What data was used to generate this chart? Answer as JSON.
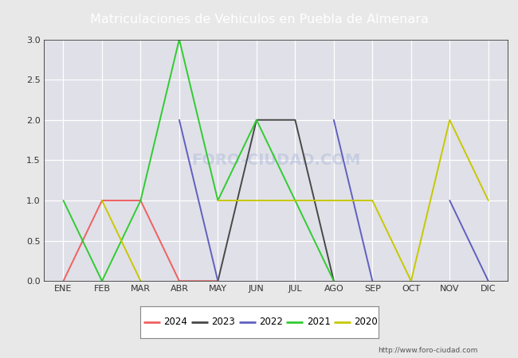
{
  "title": "Matriculaciones de Vehiculos en Puebla de Almenara",
  "title_bg_color": "#4a7fd4",
  "title_text_color": "white",
  "months": [
    "ENE",
    "FEB",
    "MAR",
    "ABR",
    "MAY",
    "JUN",
    "JUL",
    "AGO",
    "SEP",
    "OCT",
    "NOV",
    "DIC"
  ],
  "month_indices": [
    1,
    2,
    3,
    4,
    5,
    6,
    7,
    8,
    9,
    10,
    11,
    12
  ],
  "series": {
    "2024": {
      "color": "#f06060",
      "data": [
        0,
        1,
        1,
        0,
        0,
        null,
        null,
        null,
        null,
        null,
        null,
        null
      ]
    },
    "2023": {
      "color": "#484848",
      "data": [
        null,
        null,
        null,
        null,
        0,
        2,
        2,
        0,
        null,
        null,
        null,
        null
      ]
    },
    "2022": {
      "color": "#6060c0",
      "data": [
        null,
        null,
        null,
        2,
        0,
        null,
        null,
        2,
        0,
        null,
        1,
        0
      ]
    },
    "2021": {
      "color": "#30cc30",
      "data": [
        1,
        0,
        1,
        3,
        1,
        2,
        1,
        0,
        null,
        null,
        null,
        null
      ]
    },
    "2020": {
      "color": "#c8c800",
      "data": [
        null,
        1,
        0,
        null,
        1,
        1,
        1,
        1,
        1,
        0,
        2,
        1
      ]
    }
  },
  "series_order": [
    "2024",
    "2023",
    "2022",
    "2021",
    "2020"
  ],
  "ylim": [
    0.0,
    3.0
  ],
  "yticks": [
    0.0,
    0.5,
    1.0,
    1.5,
    2.0,
    2.5,
    3.0
  ],
  "watermark_text": "http://www.foro-ciudad.com",
  "foro_text": "FORO-CIUDAD.COM",
  "bg_color": "#e8e8e8",
  "plot_bg_color": "#e0e0e8",
  "grid_color": "#ffffff",
  "legend_years": [
    "2024",
    "2023",
    "2022",
    "2021",
    "2020"
  ],
  "legend_colors": [
    "#f06060",
    "#484848",
    "#6060c0",
    "#30cc30",
    "#c8c800"
  ]
}
